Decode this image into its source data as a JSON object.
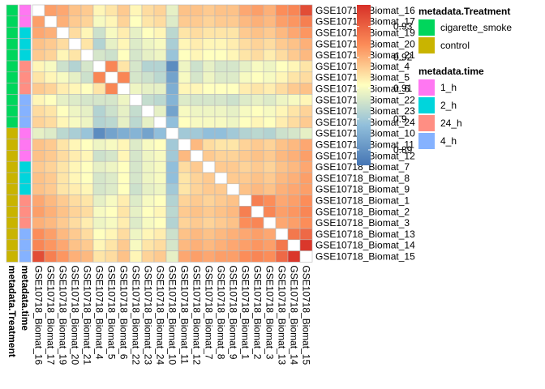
{
  "chart_data": {
    "type": "heatmap",
    "title": "",
    "labels": [
      "GSE10718_Biomat_16",
      "GSE10718_Biomat_17",
      "GSE10718_Biomat_19",
      "GSE10718_Biomat_20",
      "GSE10718_Biomat_21",
      "GSE10718_Biomat_4",
      "GSE10718_Biomat_5",
      "GSE10718_Biomat_6",
      "GSE10718_Biomat_22",
      "GSE10718_Biomat_23",
      "GSE10718_Biomat_24",
      "GSE10718_Biomat_10",
      "GSE10718_Biomat_11",
      "GSE10718_Biomat_12",
      "GSE10718_Biomat_7",
      "GSE10718_Biomat_8",
      "GSE10718_Biomat_9",
      "GSE10718_Biomat_1",
      "GSE10718_Biomat_2",
      "GSE10718_Biomat_3",
      "GSE10718_Biomat_13",
      "GSE10718_Biomat_14",
      "GSE10718_Biomat_15"
    ],
    "treatment": [
      "cigarette_smoke",
      "cigarette_smoke",
      "cigarette_smoke",
      "cigarette_smoke",
      "cigarette_smoke",
      "cigarette_smoke",
      "cigarette_smoke",
      "cigarette_smoke",
      "cigarette_smoke",
      "cigarette_smoke",
      "cigarette_smoke",
      "control",
      "control",
      "control",
      "control",
      "control",
      "control",
      "control",
      "control",
      "control",
      "control",
      "control",
      "control"
    ],
    "time": [
      "1_h",
      "1_h",
      "2_h",
      "2_h",
      "2_h",
      "24_h",
      "24_h",
      "24_h",
      "4_h",
      "4_h",
      "4_h",
      "1_h",
      "1_h",
      "1_h",
      "2_h",
      "2_h",
      "2_h",
      "24_h",
      "24_h",
      "24_h",
      "4_h",
      "4_h",
      "4_h"
    ],
    "colorbar": {
      "min": 0.885,
      "max": 0.937,
      "ticks": [
        0.89,
        0.9,
        0.91,
        0.92,
        0.93
      ],
      "tick_labels": [
        "0.89",
        "0.9",
        "0.91",
        "0.92",
        "0.93"
      ]
    },
    "legend": [
      {
        "title": "metadata.Treatment",
        "items": [
          {
            "label": "cigarette_smoke",
            "color": "#00D65C"
          },
          {
            "label": "control",
            "color": "#C9B400"
          }
        ]
      },
      {
        "title": "metadata.time",
        "items": [
          {
            "label": "1_h",
            "color": "#FF77F2"
          },
          {
            "label": "2_h",
            "color": "#00D5DC"
          },
          {
            "label": "24_h",
            "color": "#FF8E83"
          },
          {
            "label": "4_h",
            "color": "#85B2FF"
          }
        ]
      }
    ],
    "annotation_labels": [
      "metadata.Treatment",
      "metadata.time"
    ],
    "values": [
      [
        null,
        0.922,
        0.921,
        0.918,
        0.917,
        0.912,
        0.914,
        0.917,
        0.912,
        0.915,
        0.916,
        0.908,
        0.918,
        0.918,
        0.917,
        0.918,
        0.918,
        0.921,
        0.922,
        0.92,
        0.924,
        0.925,
        0.933
      ],
      [
        0.922,
        null,
        0.92,
        0.917,
        0.916,
        0.91,
        0.912,
        0.916,
        0.911,
        0.914,
        0.915,
        0.907,
        0.917,
        0.917,
        0.916,
        0.917,
        0.917,
        0.919,
        0.92,
        0.919,
        0.922,
        0.923,
        0.926
      ],
      [
        0.921,
        0.92,
        null,
        0.915,
        0.912,
        0.905,
        0.91,
        0.913,
        0.908,
        0.911,
        0.912,
        0.903,
        0.914,
        0.915,
        0.914,
        0.914,
        0.914,
        0.917,
        0.918,
        0.917,
        0.919,
        0.921,
        0.923
      ],
      [
        0.918,
        0.917,
        0.915,
        null,
        0.914,
        0.902,
        0.908,
        0.912,
        0.907,
        0.909,
        0.91,
        0.901,
        0.912,
        0.913,
        0.912,
        0.912,
        0.913,
        0.915,
        0.916,
        0.915,
        0.917,
        0.918,
        0.92
      ],
      [
        0.917,
        0.916,
        0.912,
        0.914,
        null,
        0.906,
        0.905,
        0.911,
        0.906,
        0.908,
        0.909,
        0.899,
        0.911,
        0.912,
        0.911,
        0.911,
        0.912,
        0.914,
        0.915,
        0.913,
        0.915,
        0.917,
        0.919
      ],
      [
        0.912,
        0.91,
        0.905,
        0.902,
        0.906,
        null,
        0.925,
        0.914,
        0.906,
        0.902,
        0.902,
        0.889,
        0.909,
        0.905,
        0.908,
        0.906,
        0.906,
        0.908,
        0.91,
        0.909,
        0.911,
        0.912,
        0.914
      ],
      [
        0.914,
        0.912,
        0.91,
        0.908,
        0.905,
        0.925,
        null,
        0.925,
        0.906,
        0.905,
        0.903,
        0.893,
        0.91,
        0.906,
        0.909,
        0.907,
        0.907,
        0.91,
        0.911,
        0.91,
        0.912,
        0.914,
        0.915
      ],
      [
        0.917,
        0.916,
        0.913,
        0.912,
        0.911,
        0.914,
        0.925,
        null,
        0.909,
        0.908,
        0.908,
        0.895,
        0.912,
        0.912,
        0.911,
        0.911,
        0.911,
        0.913,
        0.914,
        0.913,
        0.915,
        0.917,
        0.918
      ],
      [
        0.912,
        0.911,
        0.908,
        0.907,
        0.906,
        0.906,
        0.906,
        0.909,
        null,
        0.904,
        0.903,
        0.896,
        0.907,
        0.906,
        0.906,
        0.906,
        0.905,
        0.907,
        0.908,
        0.907,
        0.909,
        0.91,
        0.912
      ],
      [
        0.915,
        0.914,
        0.911,
        0.909,
        0.908,
        0.902,
        0.905,
        0.908,
        0.904,
        null,
        0.908,
        0.893,
        0.91,
        0.909,
        0.909,
        0.909,
        0.908,
        0.91,
        0.911,
        0.91,
        0.912,
        0.914,
        0.916
      ],
      [
        0.916,
        0.915,
        0.912,
        0.91,
        0.909,
        0.902,
        0.903,
        0.908,
        0.903,
        0.908,
        null,
        0.898,
        0.911,
        0.91,
        0.91,
        0.91,
        0.909,
        0.911,
        0.912,
        0.911,
        0.913,
        0.915,
        0.917
      ],
      [
        0.908,
        0.907,
        0.903,
        0.901,
        0.899,
        0.889,
        0.893,
        0.895,
        0.896,
        0.893,
        0.898,
        null,
        0.9,
        0.9,
        0.898,
        0.898,
        0.9,
        0.902,
        0.903,
        0.902,
        0.905,
        0.906,
        0.908
      ],
      [
        0.918,
        0.917,
        0.914,
        0.912,
        0.911,
        0.909,
        0.91,
        0.912,
        0.907,
        0.91,
        0.911,
        0.9,
        null,
        0.919,
        0.915,
        0.914,
        0.914,
        0.916,
        0.917,
        0.916,
        0.918,
        0.919,
        0.921
      ],
      [
        0.918,
        0.917,
        0.915,
        0.913,
        0.912,
        0.905,
        0.906,
        0.912,
        0.906,
        0.909,
        0.91,
        0.9,
        0.919,
        null,
        0.917,
        0.916,
        0.916,
        0.917,
        0.918,
        0.917,
        0.919,
        0.92,
        0.922
      ],
      [
        0.917,
        0.916,
        0.914,
        0.912,
        0.911,
        0.908,
        0.909,
        0.911,
        0.906,
        0.909,
        0.91,
        0.898,
        0.915,
        0.917,
        null,
        0.917,
        0.917,
        0.916,
        0.917,
        0.916,
        0.918,
        0.919,
        0.921
      ],
      [
        0.918,
        0.917,
        0.914,
        0.912,
        0.911,
        0.906,
        0.907,
        0.911,
        0.906,
        0.909,
        0.91,
        0.898,
        0.914,
        0.916,
        0.917,
        null,
        0.917,
        0.917,
        0.918,
        0.917,
        0.919,
        0.92,
        0.922
      ],
      [
        0.918,
        0.917,
        0.914,
        0.913,
        0.912,
        0.906,
        0.907,
        0.911,
        0.905,
        0.908,
        0.909,
        0.9,
        0.914,
        0.916,
        0.917,
        0.917,
        null,
        0.918,
        0.919,
        0.918,
        0.92,
        0.921,
        0.922
      ],
      [
        0.921,
        0.919,
        0.917,
        0.915,
        0.914,
        0.908,
        0.91,
        0.913,
        0.907,
        0.91,
        0.911,
        0.902,
        0.916,
        0.917,
        0.916,
        0.917,
        0.918,
        null,
        0.926,
        0.924,
        0.921,
        0.922,
        0.924
      ],
      [
        0.922,
        0.92,
        0.918,
        0.916,
        0.915,
        0.91,
        0.911,
        0.914,
        0.908,
        0.911,
        0.912,
        0.903,
        0.917,
        0.918,
        0.917,
        0.918,
        0.919,
        0.926,
        null,
        0.925,
        0.922,
        0.923,
        0.925
      ],
      [
        0.92,
        0.919,
        0.917,
        0.915,
        0.913,
        0.909,
        0.91,
        0.913,
        0.907,
        0.91,
        0.911,
        0.902,
        0.916,
        0.917,
        0.916,
        0.917,
        0.918,
        0.924,
        0.925,
        null,
        0.921,
        0.922,
        0.924
      ],
      [
        0.924,
        0.922,
        0.919,
        0.917,
        0.915,
        0.911,
        0.912,
        0.915,
        0.909,
        0.912,
        0.913,
        0.905,
        0.918,
        0.919,
        0.918,
        0.919,
        0.92,
        0.921,
        0.922,
        0.921,
        null,
        0.927,
        0.929
      ],
      [
        0.925,
        0.923,
        0.921,
        0.918,
        0.917,
        0.912,
        0.914,
        0.917,
        0.91,
        0.914,
        0.915,
        0.906,
        0.919,
        0.92,
        0.919,
        0.92,
        0.921,
        0.922,
        0.923,
        0.922,
        0.927,
        null,
        0.936
      ],
      [
        0.933,
        0.926,
        0.923,
        0.92,
        0.919,
        0.914,
        0.915,
        0.918,
        0.912,
        0.916,
        0.917,
        0.908,
        0.921,
        0.922,
        0.921,
        0.922,
        0.922,
        0.924,
        0.925,
        0.924,
        0.929,
        0.936,
        null
      ]
    ]
  }
}
